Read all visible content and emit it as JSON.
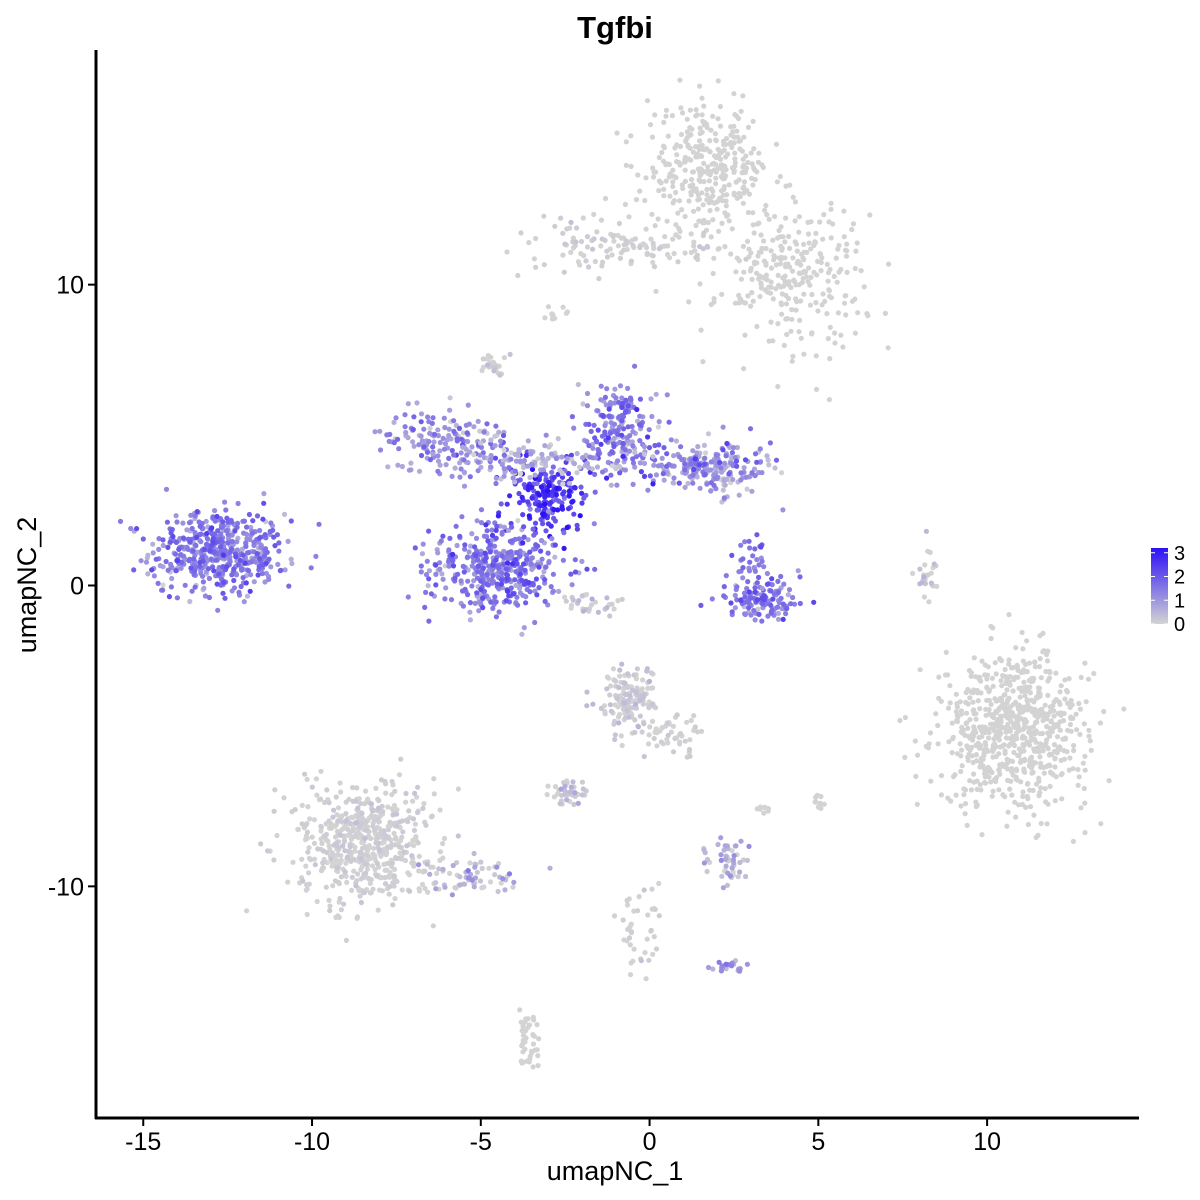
{
  "chart_data": {
    "type": "scatter",
    "title": "Tgfbi",
    "xlabel": "umapNC_1",
    "ylabel": "umapNC_2",
    "xlim": [
      -16.4,
      14.5
    ],
    "ylim": [
      -17.7,
      17.8
    ],
    "x_ticks": [
      -15,
      -10,
      -5,
      0,
      5,
      10
    ],
    "x_tick_labels": [
      "-15",
      "-10",
      "-5",
      "0",
      "5",
      "10"
    ],
    "y_ticks": [
      -10,
      0,
      10
    ],
    "y_tick_labels": [
      "-10",
      "0",
      "10"
    ],
    "grid": false,
    "legend_position": "right",
    "legend": {
      "type": "colorbar",
      "min": 0,
      "max": 3.2,
      "ticks": [
        3,
        2,
        1,
        0
      ],
      "tick_labels": [
        "3",
        "2",
        "1",
        "0"
      ],
      "low_color": "#d3d3d3",
      "high_color": "#2c10f7"
    },
    "colors": {
      "low": "#d3d3d3",
      "high": "#2c10f7"
    },
    "clusters": [
      {
        "label": "left cluster",
        "x": -12.8,
        "y": 1.1,
        "sx": 1.0,
        "sy": 0.7,
        "n": 500,
        "expr_mean": 1.35,
        "expr_sd": 0.45
      },
      {
        "label": "center hub",
        "x": -3.0,
        "y": 3.0,
        "sx": 0.6,
        "sy": 0.6,
        "n": 180,
        "expr_mean": 2.4,
        "expr_sd": 0.5
      },
      {
        "label": "center lower lobe",
        "x": -4.5,
        "y": 0.6,
        "sx": 1.0,
        "sy": 0.75,
        "n": 420,
        "expr_mean": 1.45,
        "expr_sd": 0.5
      },
      {
        "label": "center upper left lobe",
        "x": -6.0,
        "y": 4.8,
        "sx": 1.0,
        "sy": 0.5,
        "n": 160,
        "expr_mean": 1.1,
        "expr_sd": 0.5
      },
      {
        "label": "center upper right lobe",
        "x": -0.9,
        "y": 5.2,
        "sx": 0.6,
        "sy": 0.8,
        "n": 200,
        "expr_mean": 1.35,
        "expr_sd": 0.5
      },
      {
        "label": "center right arm",
        "x": 1.8,
        "y": 3.9,
        "sx": 0.9,
        "sy": 0.45,
        "n": 230,
        "expr_mean": 0.95,
        "expr_sd": 0.55
      },
      {
        "label": "center middle band",
        "x": -3.5,
        "y": 4.1,
        "sx": 1.5,
        "sy": 0.35,
        "n": 120,
        "expr_mean": 0.6,
        "expr_sd": 0.5
      },
      {
        "label": "small ring cluster",
        "x": 3.4,
        "y": -0.5,
        "sx": 0.55,
        "sy": 0.35,
        "n": 130,
        "expr_mean": 1.4,
        "expr_sd": 0.45
      },
      {
        "label": "small ring upper",
        "x": 3.0,
        "y": 0.7,
        "sx": 0.25,
        "sy": 0.4,
        "n": 30,
        "expr_mean": 1.6,
        "expr_sd": 0.4
      },
      {
        "label": "top cluster upper",
        "x": 1.7,
        "y": 13.8,
        "sx": 0.9,
        "sy": 1.0,
        "n": 330,
        "expr_mean": 0.0,
        "expr_sd": 0.0
      },
      {
        "label": "top cluster arm",
        "x": 4.2,
        "y": 10.4,
        "sx": 1.1,
        "sy": 1.2,
        "n": 280,
        "expr_mean": 0.0,
        "expr_sd": 0.0
      },
      {
        "label": "top cluster left",
        "x": -1.2,
        "y": 11.4,
        "sx": 1.5,
        "sy": 0.45,
        "n": 120,
        "expr_mean": 0.02,
        "expr_sd": 0.1
      },
      {
        "label": "right cluster",
        "x": 10.8,
        "y": -4.8,
        "sx": 1.1,
        "sy": 1.25,
        "n": 720,
        "expr_mean": 0.0,
        "expr_sd": 0.0
      },
      {
        "label": "bottom left cluster",
        "x": -8.4,
        "y": -8.6,
        "sx": 1.0,
        "sy": 1.0,
        "n": 560,
        "expr_mean": 0.02,
        "expr_sd": 0.1
      },
      {
        "label": "bottom left tail",
        "x": -5.3,
        "y": -9.7,
        "sx": 0.8,
        "sy": 0.3,
        "n": 70,
        "expr_mean": 0.4,
        "expr_sd": 0.5
      },
      {
        "label": "middle bottom cluster",
        "x": -0.6,
        "y": -3.8,
        "sx": 0.45,
        "sy": 0.55,
        "n": 150,
        "expr_mean": 0.05,
        "expr_sd": 0.2
      },
      {
        "label": "middle bottom tail",
        "x": 0.6,
        "y": -4.9,
        "sx": 0.5,
        "sy": 0.35,
        "n": 45,
        "expr_mean": 0.02,
        "expr_sd": 0.1
      },
      {
        "label": "small cluster A",
        "x": -2.4,
        "y": -6.9,
        "sx": 0.3,
        "sy": 0.2,
        "n": 40,
        "expr_mean": 0.15,
        "expr_sd": 0.35
      },
      {
        "label": "small cluster B",
        "x": 2.3,
        "y": -9.2,
        "sx": 0.35,
        "sy": 0.4,
        "n": 50,
        "expr_mean": 0.35,
        "expr_sd": 0.45
      },
      {
        "label": "small cluster C",
        "x": 2.3,
        "y": -12.7,
        "sx": 0.25,
        "sy": 0.12,
        "n": 20,
        "expr_mean": 0.9,
        "expr_sd": 0.3
      },
      {
        "label": "bottom middle strand",
        "x": -0.3,
        "y": -11.3,
        "sx": 0.35,
        "sy": 0.8,
        "n": 40,
        "expr_mean": 0.02,
        "expr_sd": 0.1
      },
      {
        "label": "bottom strand",
        "x": -3.6,
        "y": -15.0,
        "sx": 0.2,
        "sy": 0.55,
        "n": 40,
        "expr_mean": 0.0,
        "expr_sd": 0.0
      },
      {
        "label": "upper small cluster",
        "x": -4.6,
        "y": 7.3,
        "sx": 0.2,
        "sy": 0.18,
        "n": 25,
        "expr_mean": 0.05,
        "expr_sd": 0.2
      },
      {
        "label": "small elongated",
        "x": -1.7,
        "y": -0.6,
        "sx": 0.55,
        "sy": 0.25,
        "n": 30,
        "expr_mean": 0.1,
        "expr_sd": 0.25
      },
      {
        "label": "small cluster right",
        "x": 8.2,
        "y": 0.4,
        "sx": 0.2,
        "sy": 0.5,
        "n": 25,
        "expr_mean": 0.1,
        "expr_sd": 0.3
      },
      {
        "label": "small isolated",
        "x": 5.0,
        "y": -7.2,
        "sx": 0.1,
        "sy": 0.12,
        "n": 12,
        "expr_mean": 0.0,
        "expr_sd": 0.0
      },
      {
        "label": "small isolated 2",
        "x": 3.4,
        "y": -7.5,
        "sx": 0.12,
        "sy": 0.1,
        "n": 8,
        "expr_mean": 0.0,
        "expr_sd": 0.0
      },
      {
        "label": "stray upper",
        "x": -2.8,
        "y": 9.0,
        "sx": 0.2,
        "sy": 0.2,
        "n": 10,
        "expr_mean": 0.0,
        "expr_sd": 0.0
      }
    ]
  }
}
